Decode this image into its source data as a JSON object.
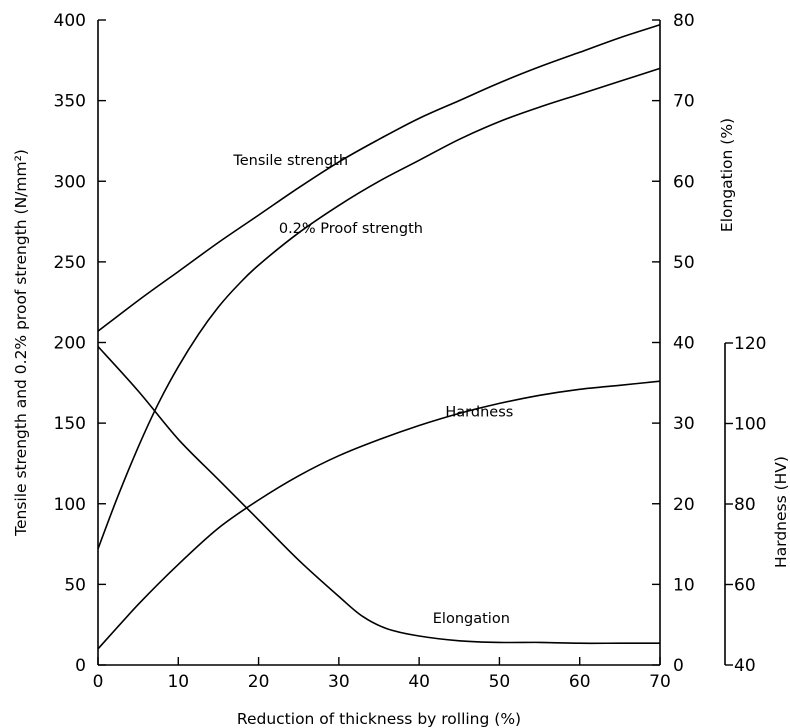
{
  "chart_data": {
    "type": "line",
    "title": "",
    "xlabel": "Reduction of thickness by rolling (%)",
    "xlim": [
      0,
      70
    ],
    "xticks": [
      0,
      10,
      20,
      30,
      40,
      50,
      60,
      70
    ],
    "grid": false,
    "legend": "none",
    "axes": {
      "left": {
        "label": "Tensile strength and 0.2% proof strength (N/mm²)",
        "lim": [
          0,
          400
        ],
        "ticks": [
          0,
          50,
          100,
          150,
          200,
          250,
          300,
          350,
          400
        ]
      },
      "right1": {
        "label": "Elongation (%)",
        "lim": [
          0,
          80
        ],
        "ticks": [
          0,
          10,
          20,
          30,
          40,
          50,
          60,
          70,
          80
        ]
      },
      "right2": {
        "label": "Hardness (HV)",
        "lim": [
          40,
          120
        ],
        "ticks": [
          40,
          60,
          80,
          100,
          120
        ]
      }
    },
    "series": [
      {
        "name": "Tensile strength",
        "axis": "left",
        "x": [
          0,
          5,
          10,
          15,
          20,
          25,
          30,
          35,
          40,
          45,
          50,
          55,
          60,
          65,
          70
        ],
        "y": [
          207,
          226,
          244,
          262,
          279,
          296,
          312,
          326,
          339,
          350,
          361,
          371,
          380,
          389,
          397
        ]
      },
      {
        "name": "0.2% Proof strength",
        "axis": "left",
        "x": [
          0,
          2.5,
          5,
          7.5,
          10,
          12.5,
          15,
          17.5,
          20,
          25,
          30,
          35,
          40,
          45,
          50,
          55,
          60,
          65,
          70
        ],
        "y": [
          72,
          105,
          135,
          162,
          185,
          205,
          222,
          236,
          248,
          268,
          285,
          300,
          313,
          326,
          337,
          346,
          354,
          362,
          370
        ]
      },
      {
        "name": "Hardness",
        "axis": "right2",
        "x": [
          0,
          5,
          10,
          15,
          20,
          25,
          30,
          35,
          40,
          45,
          50,
          55,
          60,
          65,
          70
        ],
        "y": [
          44,
          55,
          65,
          74,
          81,
          87,
          92,
          96,
          99.5,
          102.5,
          105,
          107,
          108.5,
          109.5,
          110.5
        ]
      },
      {
        "name": "Elongation",
        "axis": "right1",
        "x": [
          0,
          5,
          10,
          15,
          20,
          25,
          30,
          33,
          36,
          40,
          45,
          50,
          55,
          60,
          65,
          70
        ],
        "y": [
          39.5,
          34,
          28,
          23,
          18,
          13,
          8.5,
          6,
          4.5,
          3.6,
          3,
          2.8,
          2.8,
          2.7,
          2.7,
          2.7
        ]
      }
    ],
    "annotations": [
      {
        "text": "Tensile strength",
        "series": "Tensile strength",
        "x": 24,
        "y": 310
      },
      {
        "text": "0.2% Proof strength",
        "series": "0.2% Proof strength",
        "x": 31.5,
        "y": 268
      },
      {
        "text": "Hardness",
        "series": "Hardness",
        "x": 47.5,
        "y": 154
      },
      {
        "text": "Elongation",
        "series": "Elongation",
        "x": 46.5,
        "y": 26
      }
    ]
  }
}
